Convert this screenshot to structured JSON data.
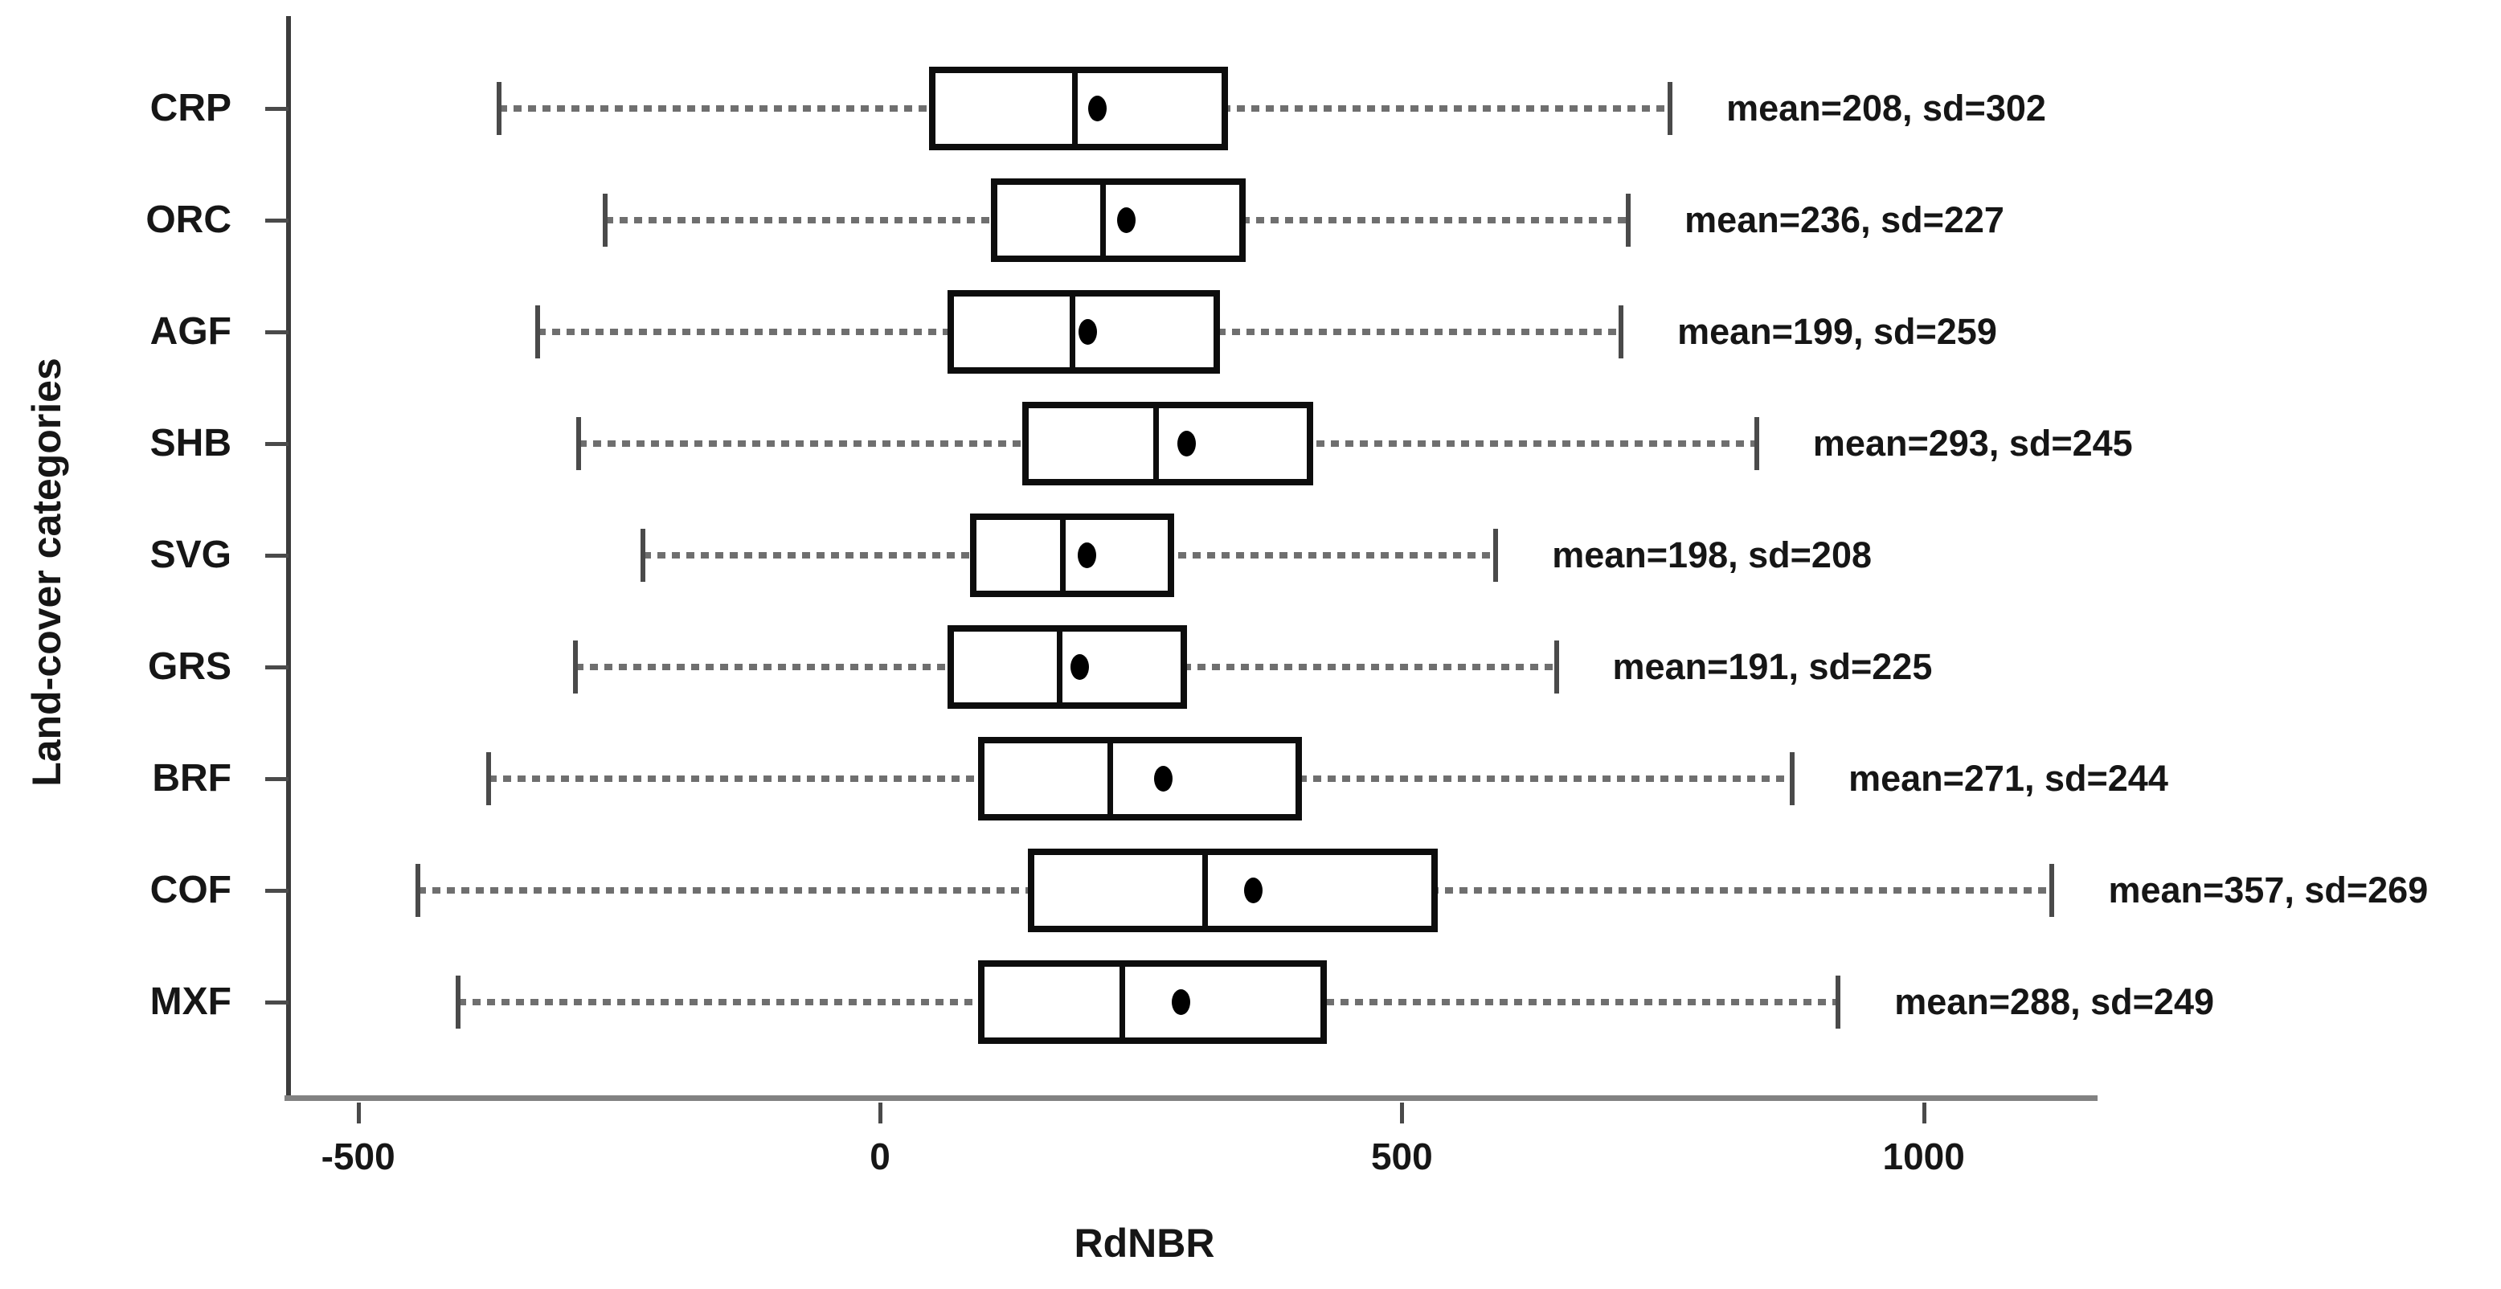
{
  "chart_data": {
    "type": "boxplot",
    "orientation": "horizontal",
    "title": "",
    "xlabel": "RdNBR",
    "ylabel": "Land-cover categories",
    "xlim": [
      -570,
      1170
    ],
    "x_ticks": [
      -500,
      0,
      500,
      1000
    ],
    "grid": false,
    "legend": false,
    "categories": [
      "CRP",
      "ORC",
      "AGF",
      "SHB",
      "SVG",
      "GRS",
      "BRF",
      "COF",
      "MXF"
    ],
    "series": [
      {
        "category": "CRP",
        "whisker_low": -365,
        "q1": 50,
        "median": 186,
        "q3": 330,
        "whisker_high": 757,
        "mean": 208,
        "sd": 302,
        "annotation": "mean=208, sd=302"
      },
      {
        "category": "ORC",
        "whisker_low": -263,
        "q1": 109,
        "median": 213,
        "q3": 347,
        "whisker_high": 717,
        "mean": 236,
        "sd": 227,
        "annotation": "mean=236, sd=227"
      },
      {
        "category": "AGF",
        "whisker_low": -328,
        "q1": 68,
        "median": 184,
        "q3": 323,
        "whisker_high": 710,
        "mean": 199,
        "sd": 259,
        "annotation": "mean=199, sd=259"
      },
      {
        "category": "SHB",
        "whisker_low": -289,
        "q1": 139,
        "median": 264,
        "q3": 412,
        "whisker_high": 840,
        "mean": 293,
        "sd": 245,
        "annotation": "mean=293, sd=245"
      },
      {
        "category": "SVG",
        "whisker_low": -227,
        "q1": 89,
        "median": 175,
        "q3": 279,
        "whisker_high": 590,
        "mean": 198,
        "sd": 208,
        "annotation": "mean=198, sd=208"
      },
      {
        "category": "GRS",
        "whisker_low": -292,
        "q1": 68,
        "median": 172,
        "q3": 291,
        "whisker_high": 648,
        "mean": 191,
        "sd": 225,
        "annotation": "mean=191, sd=225"
      },
      {
        "category": "BRF",
        "whisker_low": -375,
        "q1": 97,
        "median": 220,
        "q3": 401,
        "whisker_high": 874,
        "mean": 271,
        "sd": 244,
        "annotation": "mean=271, sd=244"
      },
      {
        "category": "COF",
        "whisker_low": -443,
        "q1": 145,
        "median": 311,
        "q3": 531,
        "whisker_high": 1123,
        "mean": 357,
        "sd": 269,
        "annotation": "mean=357, sd=269"
      },
      {
        "category": "MXF",
        "whisker_low": -404,
        "q1": 97,
        "median": 232,
        "q3": 425,
        "whisker_high": 918,
        "mean": 288,
        "sd": 249,
        "annotation": "mean=288, sd=249"
      }
    ],
    "colors": {
      "box_border": "#0d0d0d",
      "box_fill": "#ffffff",
      "median": "#0d0d0d",
      "mean_dot": "#000000",
      "whisker_dash": "#6f6f6f",
      "whisker_cap": "#4a4a4a",
      "x_axis": "#828282",
      "y_axis": "#3c3c3c",
      "text": "#161616"
    }
  }
}
